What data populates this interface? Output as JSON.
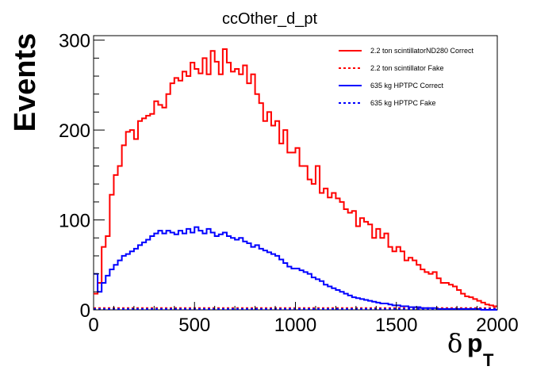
{
  "chart_data": {
    "type": "line",
    "title": "ccOther_d_pt",
    "ylabel": "Events",
    "xlabel": {
      "symbol": "δ",
      "main": "p",
      "sub": "T"
    },
    "xlim": [
      0,
      2000
    ],
    "ylim": [
      0,
      305
    ],
    "xticks": [
      0,
      500,
      1000,
      1500,
      2000
    ],
    "yticks": [
      0,
      100,
      200,
      300
    ],
    "bin_width": 20,
    "legend_position": "top-right",
    "grid": false,
    "series": [
      {
        "name": "2.2 ton scintillatorND280 Correct",
        "color": "#ff0000",
        "style": "solid",
        "values": [
          18,
          30,
          70,
          82,
          128,
          150,
          160,
          183,
          198,
          200,
          190,
          210,
          213,
          216,
          218,
          232,
          228,
          225,
          240,
          252,
          258,
          255,
          265,
          260,
          275,
          268,
          263,
          280,
          262,
          288,
          276,
          262,
          290,
          275,
          265,
          268,
          262,
          272,
          252,
          262,
          240,
          230,
          210,
          220,
          205,
          210,
          185,
          200,
          175,
          175,
          180,
          160,
          160,
          145,
          140,
          160,
          130,
          135,
          125,
          130,
          124,
          120,
          112,
          108,
          110,
          93,
          102,
          98,
          95,
          80,
          90,
          80,
          85,
          70,
          65,
          70,
          65,
          55,
          58,
          55,
          50,
          45,
          42,
          40,
          42,
          35,
          30,
          30,
          28,
          26,
          22,
          18,
          15,
          14,
          12,
          10,
          8,
          6,
          5,
          4
        ]
      },
      {
        "name": "2.2 ton scintillator Fake",
        "color": "#ff0000",
        "style": "dashed",
        "values": [
          2,
          2,
          2,
          2,
          2,
          2,
          2,
          2,
          2,
          2,
          2,
          2,
          2,
          2,
          2,
          2,
          2,
          2,
          2,
          2,
          2,
          2,
          2,
          2,
          2,
          2,
          2,
          2,
          2,
          2,
          2,
          2,
          2,
          2,
          2,
          2,
          2,
          2,
          2,
          2,
          2,
          2,
          2,
          2,
          2,
          2,
          2,
          2,
          2,
          2,
          2,
          2,
          2,
          2,
          2,
          2,
          2,
          2,
          2,
          2,
          2,
          2,
          2,
          2,
          2,
          2,
          2,
          2,
          2,
          2,
          2,
          2,
          2,
          2,
          2,
          2,
          2,
          2,
          2,
          2,
          2,
          2,
          2,
          2,
          2,
          2,
          2,
          2,
          2,
          2,
          2,
          2,
          2,
          2,
          2,
          2,
          2,
          2,
          2,
          2
        ]
      },
      {
        "name": "635 kg HPTPC Correct",
        "color": "#0000ff",
        "style": "solid",
        "values": [
          40,
          20,
          30,
          38,
          45,
          50,
          55,
          60,
          62,
          65,
          68,
          72,
          75,
          78,
          82,
          85,
          88,
          85,
          88,
          86,
          84,
          88,
          85,
          90,
          86,
          92,
          88,
          85,
          90,
          86,
          82,
          84,
          86,
          82,
          80,
          78,
          80,
          76,
          74,
          70,
          72,
          68,
          66,
          64,
          62,
          60,
          56,
          52,
          48,
          46,
          46,
          44,
          42,
          40,
          36,
          34,
          32,
          28,
          26,
          24,
          22,
          20,
          18,
          16,
          14,
          13,
          12,
          11,
          10,
          9,
          8,
          7,
          7,
          6,
          5,
          5,
          4,
          4,
          3,
          3,
          3,
          2,
          2,
          2,
          2,
          1,
          1,
          1,
          1,
          1,
          1,
          1,
          1,
          1,
          1,
          1,
          0,
          0,
          0,
          0
        ]
      },
      {
        "name": "635 kg HPTPC Fake",
        "color": "#0000ff",
        "style": "dashed",
        "values": [
          1,
          1,
          1,
          1,
          1,
          1,
          1,
          1,
          1,
          1,
          1,
          1,
          1,
          1,
          1,
          1,
          1,
          1,
          1,
          1,
          1,
          1,
          1,
          1,
          1,
          1,
          1,
          1,
          1,
          1,
          1,
          1,
          1,
          1,
          1,
          1,
          1,
          1,
          1,
          1,
          1,
          1,
          1,
          1,
          1,
          1,
          1,
          1,
          1,
          1,
          1,
          1,
          1,
          1,
          1,
          1,
          1,
          1,
          1,
          1,
          1,
          1,
          1,
          1,
          1,
          1,
          1,
          1,
          1,
          1,
          1,
          1,
          1,
          1,
          1,
          1,
          1,
          1,
          1,
          1,
          1,
          1,
          1,
          1,
          1,
          1,
          1,
          1,
          1,
          1,
          1,
          1,
          1,
          1,
          1,
          1,
          1,
          1,
          1,
          1
        ]
      }
    ]
  }
}
